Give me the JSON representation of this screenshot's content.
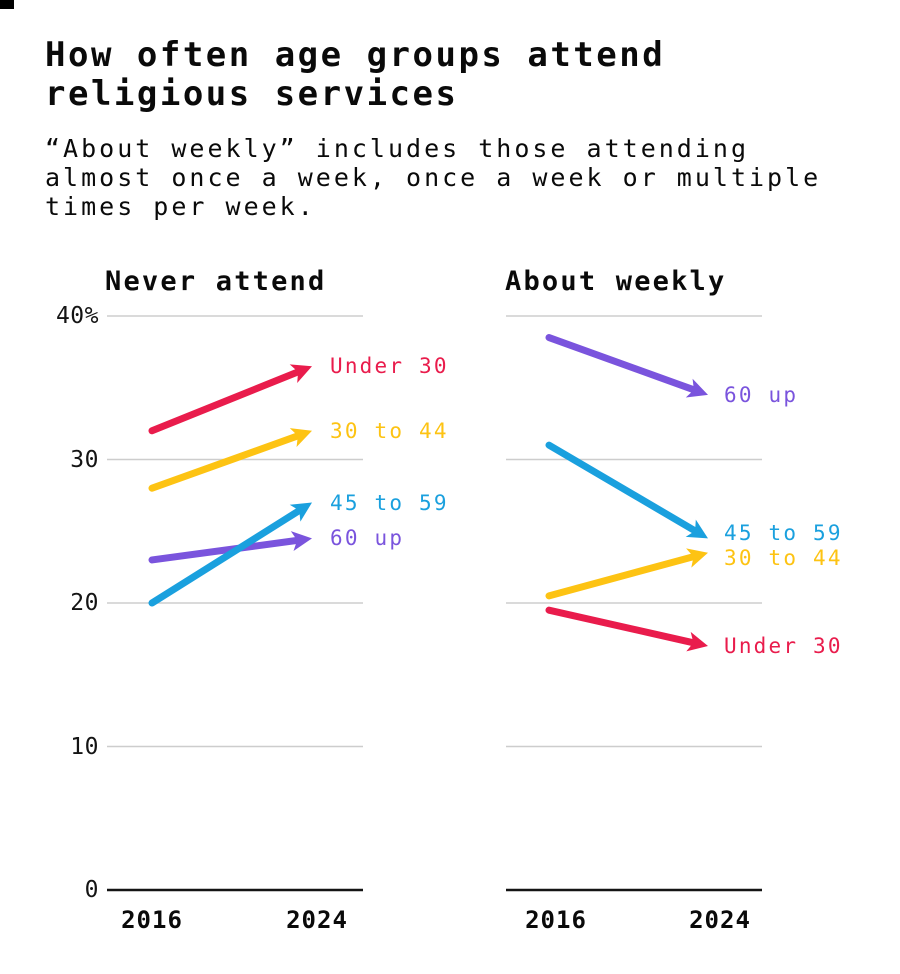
{
  "header": {
    "title": "How often age groups attend religious services",
    "subtitle": "“About weekly” includes those attending almost once a week, once a week or multiple times per week."
  },
  "colors": {
    "under_30": "#e91c4c",
    "30_to_44": "#fdc313",
    "45_to_59": "#1aa0de",
    "60_up": "#7a54dd",
    "gridline": "#cdcdcd",
    "axis_baseline": "#141414"
  },
  "chart_data": [
    {
      "type": "line",
      "title": "Never attend",
      "x_labels": [
        "2016",
        "2024"
      ],
      "ylim": [
        0,
        42
      ],
      "grid": "horizontal",
      "gridlines": [
        10,
        20,
        30,
        40
      ],
      "yticks": [
        {
          "label": "0",
          "value": 0
        },
        {
          "label": "10",
          "value": 10
        },
        {
          "label": "20",
          "value": 20
        },
        {
          "label": "30",
          "value": 30
        },
        {
          "label": "40%",
          "value": 40
        }
      ],
      "series": [
        {
          "name": "Under 30",
          "color": "#e91c4c",
          "values": [
            32,
            36.5
          ]
        },
        {
          "name": "30 to 44",
          "color": "#fdc313",
          "values": [
            28,
            32
          ]
        },
        {
          "name": "45 to 59",
          "color": "#1aa0de",
          "values": [
            20,
            27
          ]
        },
        {
          "name": "60 up",
          "color": "#7a54dd",
          "values": [
            23,
            24.5
          ]
        }
      ]
    },
    {
      "type": "line",
      "title": "About weekly",
      "x_labels": [
        "2016",
        "2024"
      ],
      "ylim": [
        0,
        42
      ],
      "grid": "horizontal",
      "gridlines": [
        10,
        20,
        30,
        40
      ],
      "yticks": [],
      "series": [
        {
          "name": "60 up",
          "color": "#7a54dd",
          "values": [
            38.5,
            34.5
          ]
        },
        {
          "name": "45 to 59",
          "color": "#1aa0de",
          "values": [
            31,
            24.5
          ]
        },
        {
          "name": "30 to 44",
          "color": "#fdc313",
          "values": [
            20.5,
            23.5
          ]
        },
        {
          "name": "Under 30",
          "color": "#e91c4c",
          "values": [
            19.5,
            17
          ]
        }
      ]
    }
  ]
}
